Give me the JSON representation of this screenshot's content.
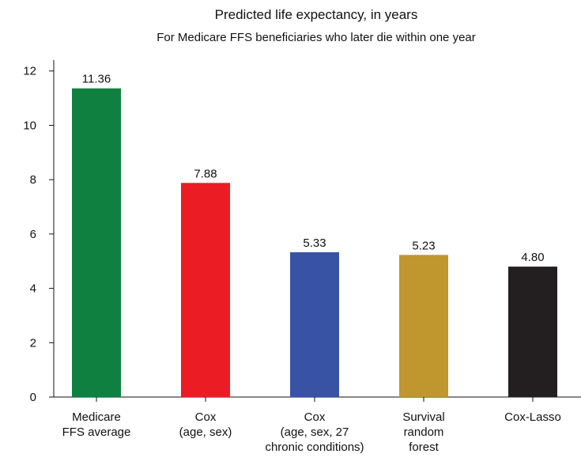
{
  "chart_data": {
    "type": "bar",
    "title": "Predicted life expectancy, in years",
    "subtitle": "For Medicare FFS beneficiaries who later die within one year",
    "categories": [
      "Medicare\nFFS average",
      "Cox\n(age, sex)",
      "Cox\n(age, sex, 27\nchronic conditions)",
      "Survival\nrandom\nforest",
      "Cox-Lasso"
    ],
    "values": [
      11.36,
      7.88,
      5.33,
      5.23,
      4.8
    ],
    "value_labels": [
      "11.36",
      "7.88",
      "5.33",
      "5.23",
      "4.80"
    ],
    "colors": [
      "#0f8040",
      "#ec1c24",
      "#3953a4",
      "#c0962e",
      "#231f20"
    ],
    "ylim": [
      0,
      12.4
    ],
    "yticks": [
      0,
      2,
      4,
      6,
      8,
      10,
      12
    ],
    "grid": false
  }
}
